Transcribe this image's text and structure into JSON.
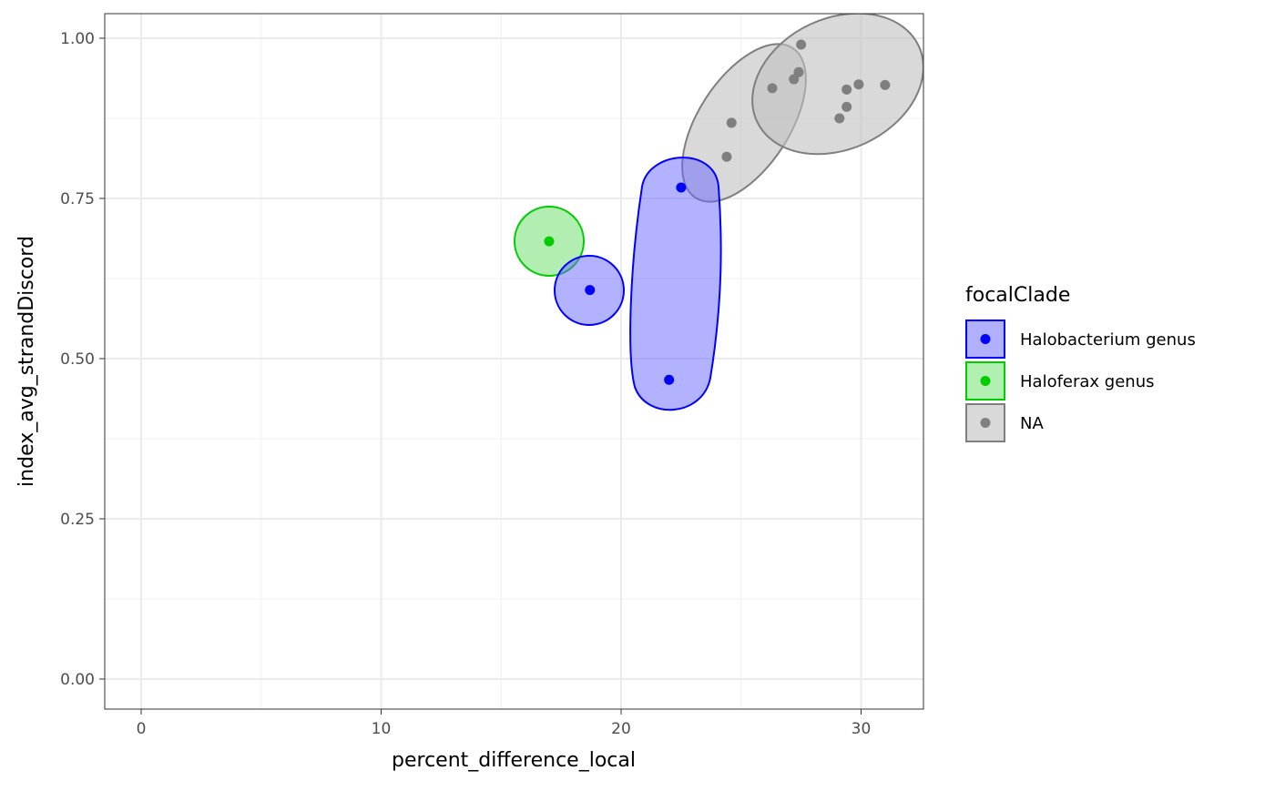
{
  "chart_data": {
    "type": "scatter",
    "title": "",
    "xlabel": "percent_difference_local",
    "ylabel": "index_avg_strandDiscord",
    "xlim": [
      -1.5,
      32.6
    ],
    "ylim": [
      -0.047,
      1.04
    ],
    "xticks": [
      0,
      10,
      20,
      30
    ],
    "xtick_labels": [
      "0",
      "10",
      "20",
      "30"
    ],
    "yticks": [
      0,
      0.25,
      0.5,
      0.75,
      1
    ],
    "ytick_labels": [
      "0.00",
      "0.25",
      "0.50",
      "0.75",
      "1.00"
    ],
    "grid": true,
    "legend": {
      "title": "focalClade",
      "placement": "right",
      "entries": [
        "Halobacterium genus",
        "Haloferax genus",
        "NA"
      ]
    },
    "colors": {
      "Halobacterium genus": "#0000ff",
      "Haloferax genus": "#00cd00",
      "NA": "#7f7f7f"
    },
    "fills": {
      "Halobacterium genus": "#b0b0ff",
      "Haloferax genus": "#b2f0b2",
      "NA": "#d9d9d9"
    },
    "series": [
      {
        "name": "Halobacterium genus",
        "points": [
          [
            22.5,
            0.767
          ],
          [
            22.0,
            0.467
          ],
          [
            18.7,
            0.607
          ]
        ]
      },
      {
        "name": "Haloferax genus",
        "points": [
          [
            17.0,
            0.683
          ]
        ]
      },
      {
        "name": "NA",
        "points": [
          [
            27.5,
            0.99
          ],
          [
            27.4,
            0.947
          ],
          [
            27.2,
            0.936
          ],
          [
            26.3,
            0.922
          ],
          [
            24.6,
            0.868
          ],
          [
            24.4,
            0.815
          ],
          [
            29.4,
            0.92
          ],
          [
            29.9,
            0.928
          ],
          [
            31.0,
            0.927
          ],
          [
            29.4,
            0.893
          ],
          [
            29.1,
            0.875
          ]
        ]
      }
    ]
  }
}
